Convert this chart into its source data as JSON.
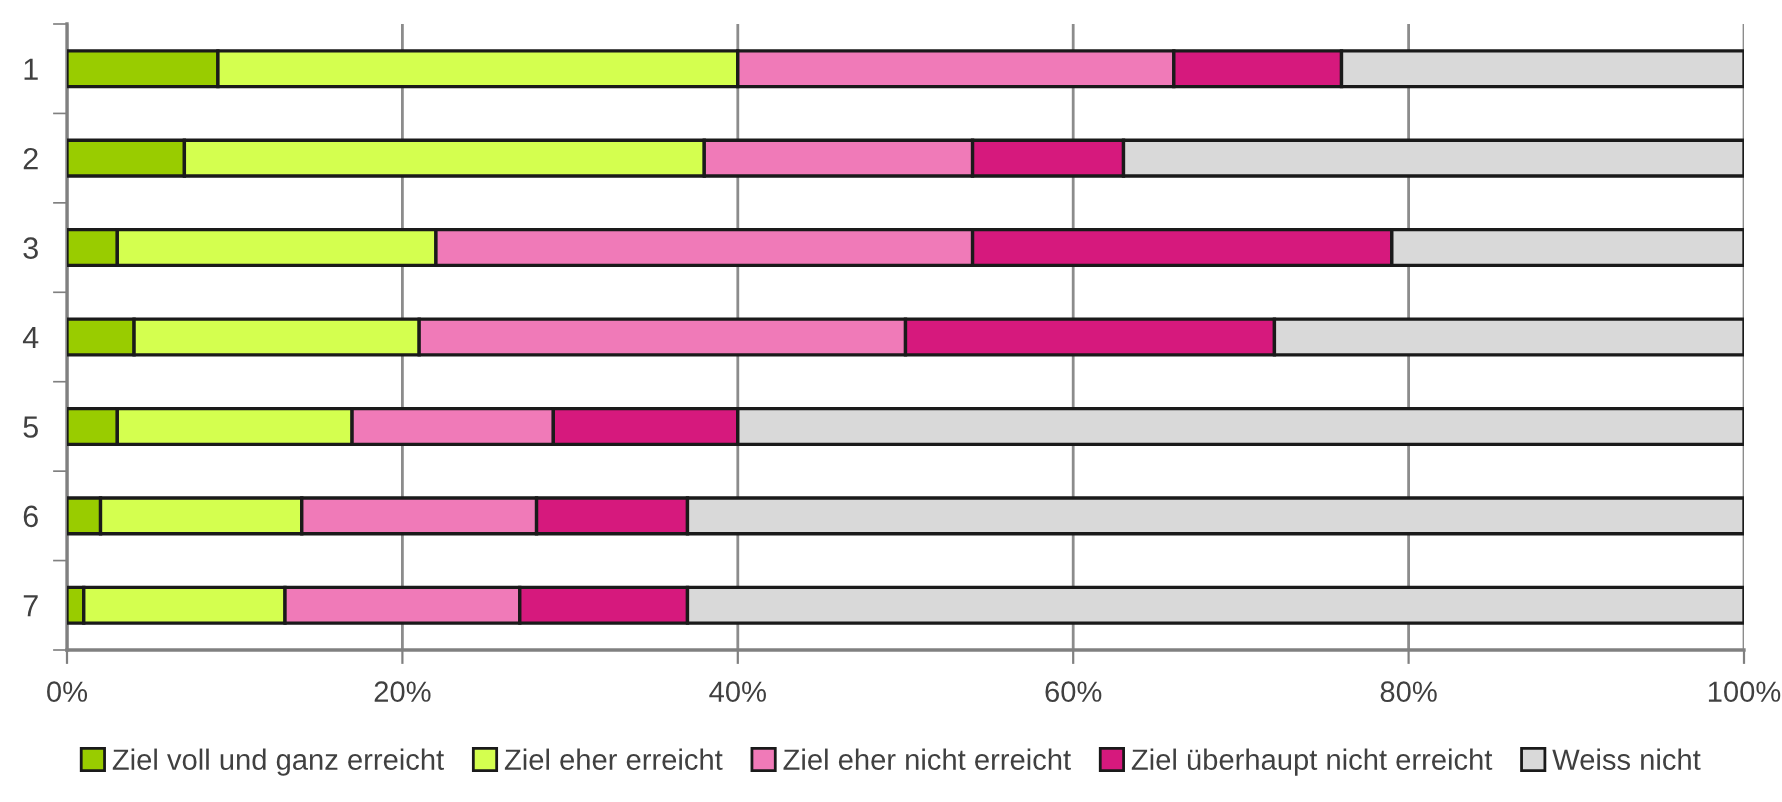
{
  "chart_data": {
    "type": "bar",
    "orientation": "horizontal",
    "stacked": true,
    "categories": [
      "1",
      "2",
      "3",
      "4",
      "5",
      "6",
      "7"
    ],
    "series": [
      {
        "name": "Ziel voll und ganz erreicht",
        "color": "#99cc00",
        "values": [
          9,
          7,
          3,
          4,
          3,
          2,
          1
        ]
      },
      {
        "name": "Ziel eher erreicht",
        "color": "#d4ff4f",
        "values": [
          31,
          31,
          19,
          17,
          14,
          12,
          12
        ]
      },
      {
        "name": "Ziel eher nicht erreicht",
        "color": "#f07ab8",
        "values": [
          26,
          16,
          32,
          29,
          12,
          14,
          14
        ]
      },
      {
        "name": "Ziel überhaupt nicht erreicht",
        "color": "#d6197d",
        "values": [
          10,
          9,
          25,
          22,
          11,
          9,
          10
        ]
      },
      {
        "name": "Weiss nicht",
        "color": "#d9d9d9",
        "values": [
          24,
          37,
          21,
          28,
          60,
          63,
          63
        ]
      }
    ],
    "xlim": [
      0,
      100
    ],
    "xticks": [
      {
        "value": 0,
        "label": "0%"
      },
      {
        "value": 20,
        "label": "20%"
      },
      {
        "value": 40,
        "label": "40%"
      },
      {
        "value": 60,
        "label": "60%"
      },
      {
        "value": 80,
        "label": "80%"
      },
      {
        "value": 100,
        "label": "100%"
      }
    ],
    "grid": "x",
    "legend": "bottom"
  }
}
